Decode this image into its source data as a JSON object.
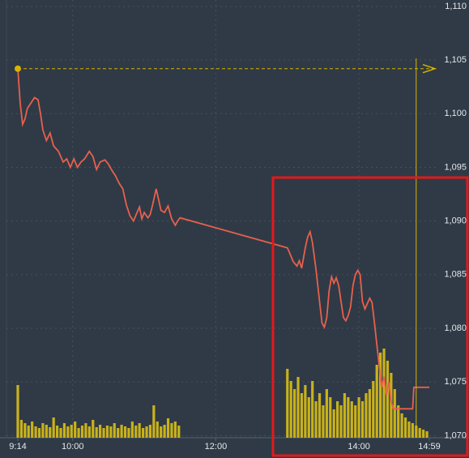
{
  "chart_data": {
    "type": "line",
    "xlim": [
      "9:14",
      "14:59"
    ],
    "xticks": [
      "9:14",
      "10:00",
      "12:00",
      "14:00",
      "14:59"
    ],
    "ylim": [
      1069.8,
      1110.6
    ],
    "yticks": [
      {
        "value": 1070,
        "label": "1,070"
      },
      {
        "value": 1075,
        "label": "1,075"
      },
      {
        "value": 1080,
        "label": "1,080"
      },
      {
        "value": 1085,
        "label": "1,085"
      },
      {
        "value": 1090,
        "label": "1,090"
      },
      {
        "value": 1095,
        "label": "1,095"
      },
      {
        "value": 1100,
        "label": "1,100"
      },
      {
        "value": 1105,
        "label": "1,105"
      },
      {
        "value": 1110,
        "label": "1,110"
      }
    ],
    "grid": true,
    "reference_price": 1104.2,
    "reference_color": "#d9b300",
    "cursor_time": "14:48",
    "series": [
      {
        "type": "line",
        "color": "#e8604c",
        "x": [
          "9:14",
          "9:16",
          "9:18",
          "9:20",
          "9:22",
          "9:25",
          "9:28",
          "9:31",
          "9:33",
          "9:35",
          "9:38",
          "9:41",
          "9:44",
          "9:48",
          "9:52",
          "9:55",
          "9:58",
          "10:01",
          "10:04",
          "10:07",
          "10:10",
          "10:14",
          "10:17",
          "10:20",
          "10:23",
          "10:27",
          "10:30",
          "10:33",
          "10:36",
          "10:39",
          "10:42",
          "10:45",
          "10:48",
          "10:51",
          "10:54",
          "10:56",
          "10:58",
          "11:00",
          "11:03",
          "11:05",
          "11:07",
          "11:10",
          "11:12",
          "11:14",
          "11:17",
          "11:20",
          "11:23",
          "11:26",
          "11:28",
          "11:30",
          "13:00",
          "13:02",
          "13:05",
          "13:08",
          "13:10",
          "13:12",
          "13:15",
          "13:17",
          "13:19",
          "13:21",
          "13:24",
          "13:27",
          "13:29",
          "13:31",
          "13:33",
          "13:35",
          "13:37",
          "13:39",
          "13:41",
          "13:43",
          "13:45",
          "13:47",
          "13:49",
          "13:51",
          "13:53",
          "13:55",
          "13:57",
          "13:59",
          "14:01",
          "14:03",
          "14:05",
          "14:07",
          "14:09",
          "14:11",
          "14:13",
          "14:15",
          "14:17",
          "14:19",
          "14:21",
          "14:23",
          "14:25",
          "14:27",
          "14:29",
          "14:45",
          "14:46",
          "14:59"
        ],
        "values": [
          1104.2,
          1101.0,
          1099.0,
          1099.5,
          1100.5,
          1101.0,
          1101.5,
          1101.3,
          1100.0,
          1098.5,
          1097.5,
          1098.2,
          1097.0,
          1096.5,
          1095.5,
          1095.8,
          1095.0,
          1095.8,
          1095.0,
          1095.5,
          1095.8,
          1096.5,
          1096.0,
          1094.8,
          1095.5,
          1095.7,
          1095.3,
          1094.7,
          1094.2,
          1093.5,
          1093.0,
          1091.5,
          1090.5,
          1090.0,
          1090.8,
          1091.3,
          1090.2,
          1090.8,
          1090.3,
          1090.6,
          1091.5,
          1093.0,
          1092.0,
          1091.0,
          1090.8,
          1091.4,
          1090.2,
          1089.6,
          1090.0,
          1090.3,
          1087.5,
          1087.0,
          1086.2,
          1085.8,
          1086.3,
          1085.6,
          1087.5,
          1088.5,
          1089.0,
          1088.0,
          1085.5,
          1082.5,
          1080.5,
          1080.1,
          1081.0,
          1083.5,
          1084.8,
          1084.2,
          1084.7,
          1084.0,
          1082.5,
          1081.0,
          1080.7,
          1081.2,
          1082.0,
          1084.0,
          1085.0,
          1085.4,
          1085.0,
          1082.5,
          1081.8,
          1082.3,
          1082.8,
          1082.4,
          1080.5,
          1078.5,
          1076.5,
          1074.5,
          1075.5,
          1073.8,
          1075.0,
          1073.2,
          1072.5,
          1072.5,
          1074.5,
          1074.5
        ]
      },
      {
        "type": "bar",
        "color": "#c9b21a",
        "x": [
          "9:14",
          "9:17",
          "9:20",
          "9:23",
          "9:26",
          "9:29",
          "9:32",
          "9:35",
          "9:38",
          "9:41",
          "9:44",
          "9:47",
          "9:50",
          "9:53",
          "9:56",
          "9:59",
          "10:02",
          "10:05",
          "10:08",
          "10:11",
          "10:14",
          "10:17",
          "10:20",
          "10:23",
          "10:26",
          "10:29",
          "10:32",
          "10:35",
          "10:38",
          "10:41",
          "10:44",
          "10:47",
          "10:50",
          "10:53",
          "10:56",
          "10:59",
          "11:02",
          "11:05",
          "11:08",
          "11:11",
          "11:14",
          "11:17",
          "11:20",
          "11:23",
          "11:26",
          "11:29",
          "13:00",
          "13:03",
          "13:06",
          "13:09",
          "13:12",
          "13:15",
          "13:18",
          "13:21",
          "13:24",
          "13:27",
          "13:30",
          "13:33",
          "13:36",
          "13:39",
          "13:42",
          "13:45",
          "13:48",
          "13:51",
          "13:54",
          "13:57",
          "14:00",
          "14:03",
          "14:06",
          "14:09",
          "14:12",
          "14:15",
          "14:18",
          "14:21",
          "14:24",
          "14:27",
          "14:30",
          "14:33",
          "14:36",
          "14:39",
          "14:42",
          "14:45",
          "14:48",
          "14:51",
          "14:54",
          "14:57"
        ],
        "values": [
          65,
          22,
          18,
          15,
          20,
          14,
          12,
          18,
          16,
          13,
          25,
          15,
          12,
          18,
          14,
          16,
          20,
          12,
          15,
          18,
          14,
          22,
          13,
          16,
          12,
          15,
          14,
          18,
          12,
          16,
          14,
          12,
          20,
          15,
          18,
          12,
          14,
          16,
          40,
          20,
          14,
          16,
          24,
          18,
          20,
          15,
          85,
          70,
          60,
          75,
          55,
          65,
          50,
          70,
          45,
          55,
          40,
          60,
          50,
          35,
          45,
          40,
          55,
          50,
          45,
          40,
          50,
          45,
          55,
          60,
          70,
          90,
          105,
          110,
          95,
          80,
          60,
          40,
          30,
          25,
          20,
          18,
          15,
          12,
          10,
          8
        ]
      }
    ]
  }
}
